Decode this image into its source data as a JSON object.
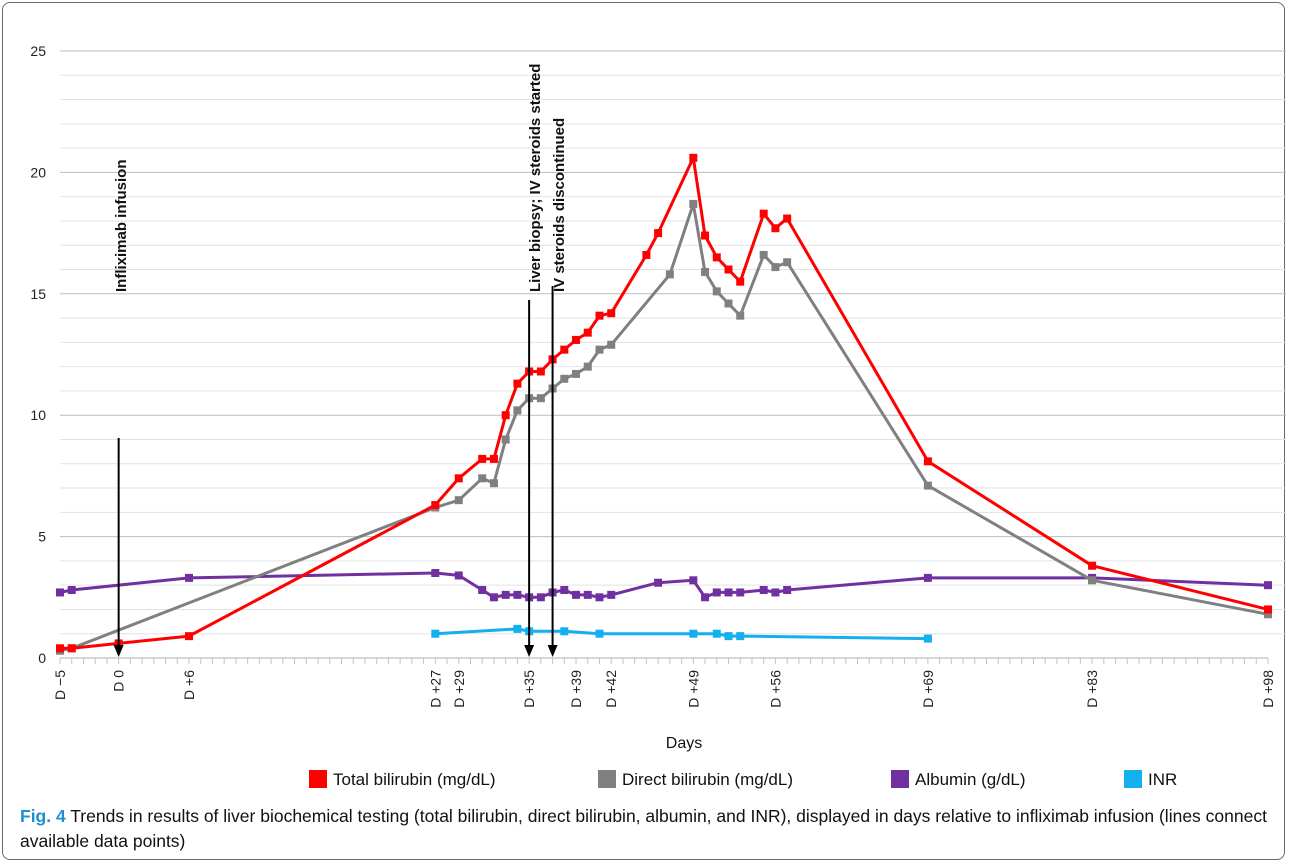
{
  "chart_data": {
    "type": "line",
    "xlabel": "Days",
    "ylabel": "",
    "xlim": [
      -5,
      98
    ],
    "ylim": [
      0,
      25
    ],
    "y_ticks": [
      0,
      5,
      10,
      15,
      20,
      25
    ],
    "x_ticks": [
      {
        "value": -5,
        "label": "D −5"
      },
      {
        "value": 0,
        "label": "D 0"
      },
      {
        "value": 6,
        "label": "D +6"
      },
      {
        "value": 27,
        "label": "D +27"
      },
      {
        "value": 29,
        "label": "D +29"
      },
      {
        "value": 35,
        "label": "D +35"
      },
      {
        "value": 39,
        "label": "D +39"
      },
      {
        "value": 42,
        "label": "D +42"
      },
      {
        "value": 49,
        "label": "D +49"
      },
      {
        "value": 56,
        "label": "D +56"
      },
      {
        "value": 69,
        "label": "D +69"
      },
      {
        "value": 83,
        "label": "D +83"
      },
      {
        "value": 98,
        "label": "D +98"
      }
    ],
    "grid": true,
    "legend_position": "bottom",
    "series": [
      {
        "name": "Total bilirubin (mg/dL)",
        "color": "#ff0000",
        "points": [
          [
            -5,
            0.4
          ],
          [
            -4,
            0.4
          ],
          [
            0,
            0.6
          ],
          [
            6,
            0.9
          ],
          [
            27,
            6.3
          ],
          [
            29,
            7.4
          ],
          [
            31,
            8.2
          ],
          [
            32,
            8.2
          ],
          [
            33,
            10.0
          ],
          [
            34,
            11.3
          ],
          [
            35,
            11.8
          ],
          [
            36,
            11.8
          ],
          [
            37,
            12.3
          ],
          [
            38,
            12.7
          ],
          [
            39,
            13.1
          ],
          [
            40,
            13.4
          ],
          [
            41,
            14.1
          ],
          [
            42,
            14.2
          ],
          [
            45,
            16.6
          ],
          [
            46,
            17.5
          ],
          [
            49,
            20.6
          ],
          [
            50,
            17.4
          ],
          [
            51,
            16.5
          ],
          [
            52,
            16.0
          ],
          [
            53,
            15.5
          ],
          [
            55,
            18.3
          ],
          [
            56,
            17.7
          ],
          [
            57,
            18.1
          ],
          [
            69,
            8.1
          ],
          [
            83,
            3.8
          ],
          [
            98,
            2.0
          ]
        ]
      },
      {
        "name": "Direct bilirubin (mg/dL)",
        "color": "#808080",
        "points": [
          [
            -5,
            0.3
          ],
          [
            -4,
            0.4
          ],
          [
            27,
            6.2
          ],
          [
            29,
            6.5
          ],
          [
            31,
            7.4
          ],
          [
            32,
            7.2
          ],
          [
            33,
            9.0
          ],
          [
            34,
            10.2
          ],
          [
            35,
            10.7
          ],
          [
            36,
            10.7
          ],
          [
            37,
            11.1
          ],
          [
            38,
            11.5
          ],
          [
            39,
            11.7
          ],
          [
            40,
            12.0
          ],
          [
            41,
            12.7
          ],
          [
            42,
            12.9
          ],
          [
            47,
            15.8
          ],
          [
            49,
            18.7
          ],
          [
            50,
            15.9
          ],
          [
            51,
            15.1
          ],
          [
            52,
            14.6
          ],
          [
            53,
            14.1
          ],
          [
            55,
            16.6
          ],
          [
            56,
            16.1
          ],
          [
            57,
            16.3
          ],
          [
            69,
            7.1
          ],
          [
            83,
            3.2
          ],
          [
            98,
            1.8
          ]
        ]
      },
      {
        "name": "Albumin (g/dL)",
        "color": "#7030a0",
        "points": [
          [
            -5,
            2.7
          ],
          [
            -4,
            2.8
          ],
          [
            6,
            3.3
          ],
          [
            27,
            3.5
          ],
          [
            29,
            3.4
          ],
          [
            31,
            2.8
          ],
          [
            32,
            2.5
          ],
          [
            33,
            2.6
          ],
          [
            34,
            2.6
          ],
          [
            35,
            2.5
          ],
          [
            36,
            2.5
          ],
          [
            37,
            2.7
          ],
          [
            38,
            2.8
          ],
          [
            39,
            2.6
          ],
          [
            40,
            2.6
          ],
          [
            41,
            2.5
          ],
          [
            42,
            2.6
          ],
          [
            46,
            3.1
          ],
          [
            49,
            3.2
          ],
          [
            50,
            2.5
          ],
          [
            51,
            2.7
          ],
          [
            52,
            2.7
          ],
          [
            53,
            2.7
          ],
          [
            55,
            2.8
          ],
          [
            56,
            2.7
          ],
          [
            57,
            2.8
          ],
          [
            69,
            3.3
          ],
          [
            83,
            3.3
          ],
          [
            98,
            3.0
          ]
        ]
      },
      {
        "name": "INR",
        "color": "#12b0ee",
        "points": [
          [
            27,
            1.0
          ],
          [
            34,
            1.2
          ],
          [
            35,
            1.1
          ],
          [
            38,
            1.1
          ],
          [
            41,
            1.0
          ],
          [
            49,
            1.0
          ],
          [
            51,
            1.0
          ],
          [
            52,
            0.9
          ],
          [
            53,
            0.9
          ],
          [
            69,
            0.8
          ]
        ]
      }
    ],
    "annotations": [
      {
        "text": "Infliximab infusion",
        "x": 0
      },
      {
        "text": "Liver biopsy; IV steroids started",
        "x": 35
      },
      {
        "text": "IV steroids discontinued",
        "x": 37
      }
    ]
  },
  "caption": {
    "label": "Fig. 4",
    "text": "Trends in results of liver biochemical testing (total bilirubin, direct bilirubin, albumin, and INR), displayed in days relative to infliximab infusion (lines connect available data points)"
  }
}
